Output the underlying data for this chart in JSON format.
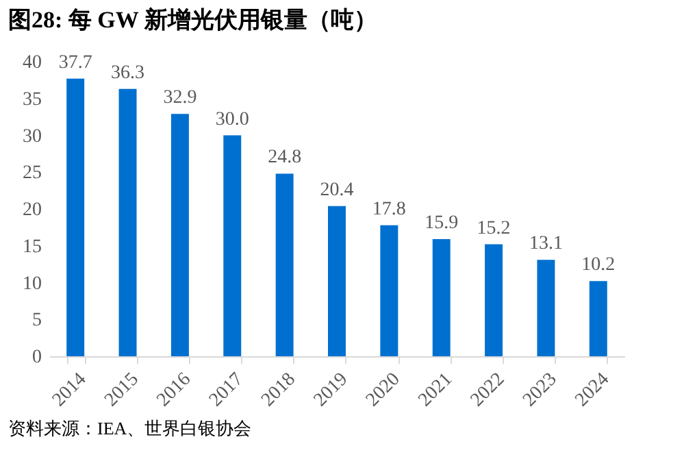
{
  "chart_data": {
    "type": "bar",
    "title": "图28:  每 GW 新增光伏用银量（吨）",
    "categories": [
      "2014",
      "2015",
      "2016",
      "2017",
      "2018",
      "2019",
      "2020",
      "2021",
      "2022",
      "2023",
      "2024"
    ],
    "values": [
      37.7,
      36.3,
      32.9,
      30.0,
      24.8,
      20.4,
      17.8,
      15.9,
      15.2,
      13.1,
      10.2
    ],
    "color": "#0070d0",
    "ylim": [
      0,
      40
    ],
    "yticks": [
      0,
      5,
      10,
      15,
      20,
      25,
      30,
      35,
      40
    ],
    "data_labels": true,
    "value_labels": [
      "37.7",
      "36.3",
      "32.9",
      "30.0",
      "24.8",
      "20.4",
      "17.8",
      "15.9",
      "15.2",
      "13.1",
      "10.2"
    ],
    "grid": false,
    "annotations": [
      "资料来源：IEA、世界白银协会"
    ]
  }
}
